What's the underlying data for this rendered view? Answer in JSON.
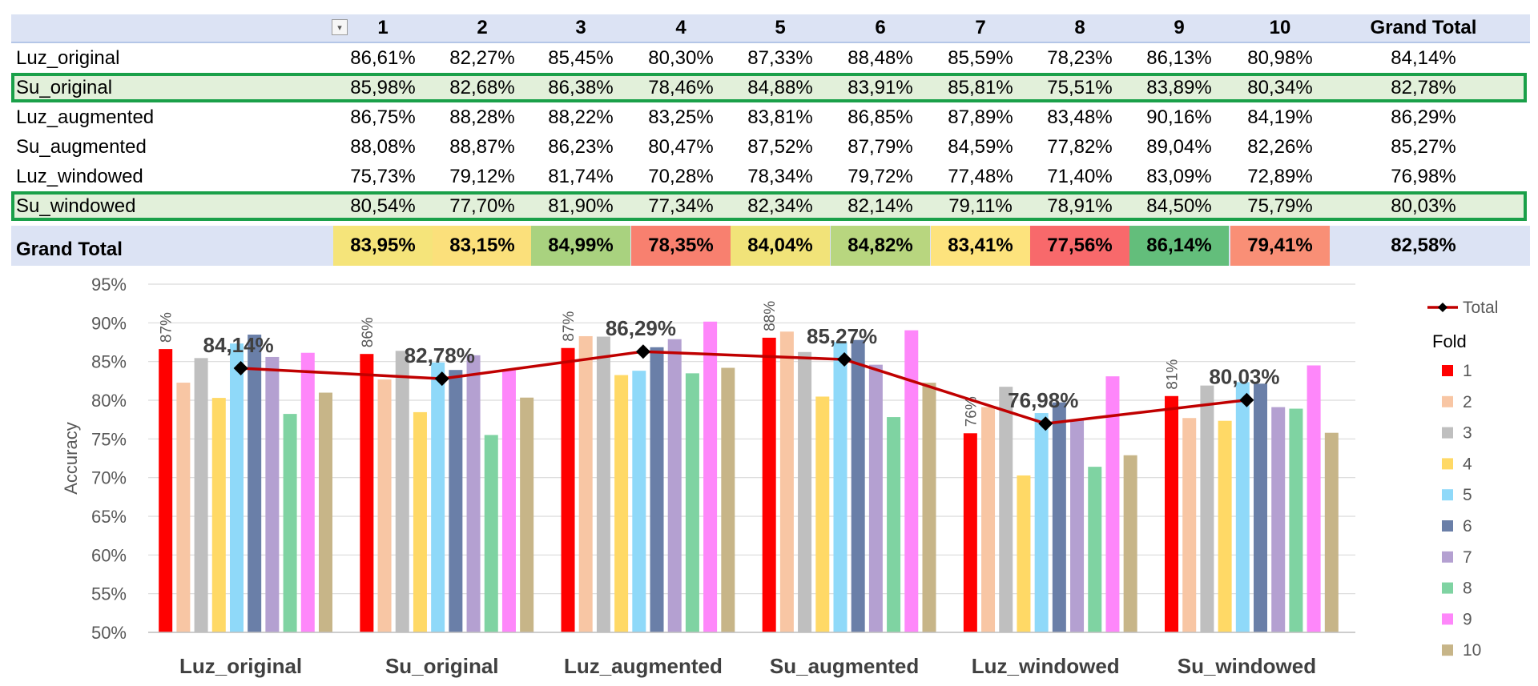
{
  "table": {
    "columns": [
      "1",
      "2",
      "3",
      "4",
      "5",
      "6",
      "7",
      "8",
      "9",
      "10",
      "Grand Total"
    ],
    "rows": [
      {
        "label": "Luz_original",
        "values": [
          "86,61%",
          "82,27%",
          "85,45%",
          "80,30%",
          "87,33%",
          "88,48%",
          "85,59%",
          "78,23%",
          "86,13%",
          "80,98%",
          "84,14%"
        ],
        "highlight": false
      },
      {
        "label": "Su_original",
        "values": [
          "85,98%",
          "82,68%",
          "86,38%",
          "78,46%",
          "84,88%",
          "83,91%",
          "85,81%",
          "75,51%",
          "83,89%",
          "80,34%",
          "82,78%"
        ],
        "highlight": true
      },
      {
        "label": "Luz_augmented",
        "values": [
          "86,75%",
          "88,28%",
          "88,22%",
          "83,25%",
          "83,81%",
          "86,85%",
          "87,89%",
          "83,48%",
          "90,16%",
          "84,19%",
          "86,29%"
        ],
        "highlight": false
      },
      {
        "label": "Su_augmented",
        "values": [
          "88,08%",
          "88,87%",
          "86,23%",
          "80,47%",
          "87,52%",
          "87,79%",
          "84,59%",
          "77,82%",
          "89,04%",
          "82,26%",
          "85,27%"
        ],
        "highlight": false
      },
      {
        "label": "Luz_windowed",
        "values": [
          "75,73%",
          "79,12%",
          "81,74%",
          "70,28%",
          "78,34%",
          "79,72%",
          "77,48%",
          "71,40%",
          "83,09%",
          "72,89%",
          "76,98%"
        ],
        "highlight": false
      },
      {
        "label": "Su_windowed",
        "values": [
          "80,54%",
          "77,70%",
          "81,90%",
          "77,34%",
          "82,34%",
          "82,14%",
          "79,11%",
          "78,91%",
          "84,50%",
          "75,79%",
          "80,03%"
        ],
        "highlight": true
      }
    ],
    "grand_total": {
      "label": "Grand Total",
      "values": [
        "83,95%",
        "83,15%",
        "84,99%",
        "78,35%",
        "84,04%",
        "84,82%",
        "83,41%",
        "77,56%",
        "86,14%",
        "79,41%",
        "82,58%"
      ],
      "colors": [
        "#f5e47a",
        "#fbe07b",
        "#a9d27f",
        "#f8806f",
        "#f1e379",
        "#b8d67f",
        "#fde37d",
        "#f8696b",
        "#63be7b",
        "#f98f76",
        "#dce3f4"
      ]
    }
  },
  "chart_data": {
    "type": "bar",
    "categories": [
      "Luz_original",
      "Su_original",
      "Luz_augmented",
      "Su_augmented",
      "Luz_windowed",
      "Su_windowed"
    ],
    "ylabel": "Accuracy",
    "xlabel": "",
    "ylim": [
      50,
      95
    ],
    "yticks": [
      "50%",
      "55%",
      "60%",
      "65%",
      "70%",
      "75%",
      "80%",
      "85%",
      "90%",
      "95%"
    ],
    "grid": true,
    "legend_position": "right",
    "legend_title": "Fold",
    "series": [
      {
        "name": "1",
        "color": "#ff0000",
        "values": [
          86.61,
          85.98,
          86.75,
          88.08,
          75.73,
          80.54
        ]
      },
      {
        "name": "2",
        "color": "#f8c6a4",
        "values": [
          82.27,
          82.68,
          88.28,
          88.87,
          79.12,
          77.7
        ]
      },
      {
        "name": "3",
        "color": "#bfbfbf",
        "values": [
          85.45,
          86.38,
          88.22,
          86.23,
          81.74,
          81.9
        ]
      },
      {
        "name": "4",
        "color": "#ffd966",
        "values": [
          80.3,
          78.46,
          83.25,
          80.47,
          70.28,
          77.34
        ]
      },
      {
        "name": "5",
        "color": "#8fd9f9",
        "values": [
          87.33,
          84.88,
          83.81,
          87.52,
          78.34,
          82.34
        ]
      },
      {
        "name": "6",
        "color": "#6a7fa8",
        "values": [
          88.48,
          83.91,
          86.85,
          87.79,
          79.72,
          82.14
        ]
      },
      {
        "name": "7",
        "color": "#b4a0d1",
        "values": [
          85.59,
          85.81,
          87.89,
          84.59,
          77.48,
          79.11
        ]
      },
      {
        "name": "8",
        "color": "#7fd3a2",
        "values": [
          78.23,
          75.51,
          83.48,
          77.82,
          71.4,
          78.91
        ]
      },
      {
        "name": "9",
        "color": "#fe87fa",
        "values": [
          86.13,
          83.89,
          90.16,
          89.04,
          83.09,
          84.5
        ]
      },
      {
        "name": "10",
        "color": "#c7b588",
        "values": [
          80.98,
          80.34,
          84.19,
          82.26,
          72.89,
          75.79
        ]
      }
    ],
    "first_bar_labels": [
      "87%",
      "86%",
      "87%",
      "88%",
      "76%",
      "81%"
    ],
    "total_series": {
      "name": "Total",
      "color": "#c00000",
      "values": [
        84.14,
        82.78,
        86.29,
        85.27,
        76.98,
        80.03
      ],
      "labels": [
        "84,14%",
        "82,78%",
        "86,29%",
        "85,27%",
        "76,98%",
        "80,03%"
      ]
    }
  }
}
